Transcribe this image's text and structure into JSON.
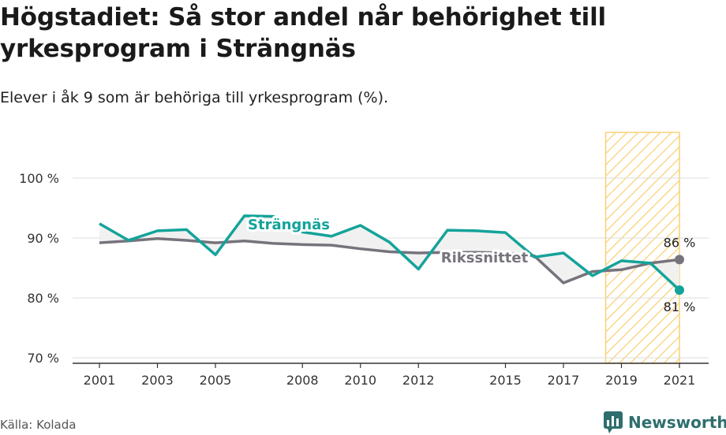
{
  "header": {
    "title": "Högstadiet: Så stor andel når behörighet till yrkesprogram i Strängnäs",
    "subtitle": "Elever i åk 9 som är behöriga till yrkesprogram (%)."
  },
  "footer": {
    "source": "Källa: Kolada",
    "brand": "Newsworthy"
  },
  "colors": {
    "strangnas": "#14a39a",
    "riket": "#77737c",
    "forecast_band": "#f6c95e",
    "grid": "#dddddd"
  },
  "chart_data": {
    "type": "line",
    "title": "Högstadiet: Så stor andel når behörighet till yrkesprogram i Strängnäs",
    "subtitle": "Elever i åk 9 som är behöriga till yrkesprogram (%).",
    "x": [
      2001,
      2002,
      2003,
      2004,
      2005,
      2006,
      2007,
      2008,
      2009,
      2010,
      2011,
      2012,
      2013,
      2014,
      2015,
      2016,
      2017,
      2018,
      2019,
      2020,
      2021
    ],
    "x_ticks": [
      2001,
      2003,
      2005,
      2008,
      2010,
      2012,
      2015,
      2017,
      2019,
      2021
    ],
    "y_ticks": [
      70,
      80,
      90,
      100
    ],
    "y_tick_labels": [
      "70 %",
      "80 %",
      "90 %",
      "100 %"
    ],
    "ylim": [
      70,
      100
    ],
    "grid": true,
    "highlight_range": [
      2019,
      2021
    ],
    "series": [
      {
        "name": "Strängnäs",
        "values": [
          92.4,
          89.6,
          91.2,
          91.4,
          87.2,
          93.7,
          93.6,
          91.0,
          90.3,
          92.1,
          89.3,
          84.8,
          91.3,
          91.2,
          90.9,
          86.8,
          87.5,
          83.7,
          86.2,
          85.8,
          81.3
        ],
        "end_label": "81 %"
      },
      {
        "name": "Rikssnittet",
        "values": [
          89.2,
          89.5,
          89.9,
          89.6,
          89.2,
          89.5,
          89.1,
          88.9,
          88.8,
          88.2,
          87.7,
          87.5,
          87.6,
          87.6,
          87.5,
          87.0,
          82.5,
          84.4,
          84.7,
          85.8,
          86.4
        ],
        "end_label": "86 %"
      }
    ]
  }
}
